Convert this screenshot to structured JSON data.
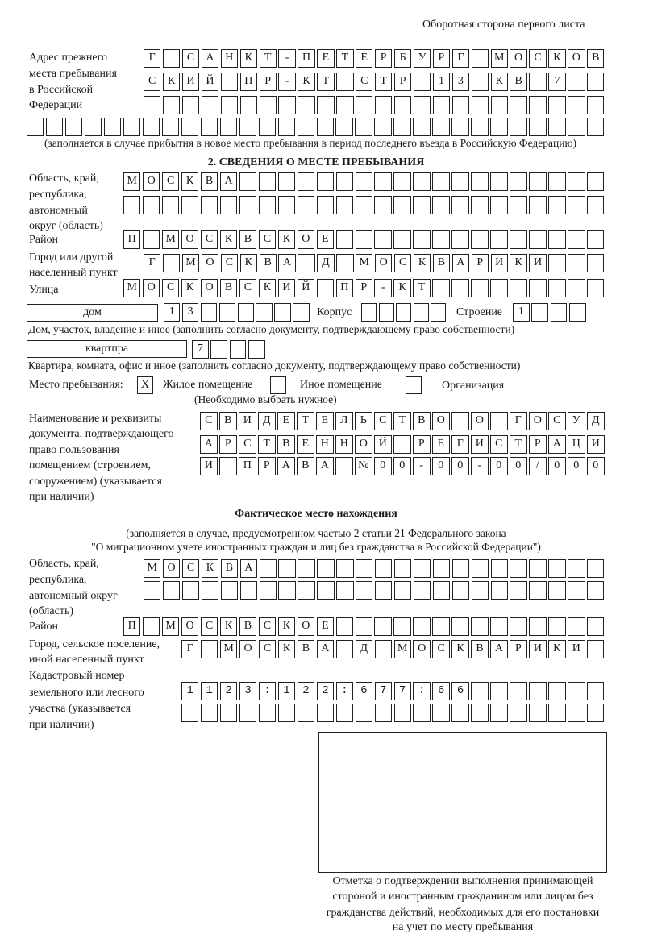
{
  "header": "Оборотная сторона первого листа",
  "prev_address": {
    "label_lines": [
      "Адрес прежнего",
      "места пребывания",
      "в Российской",
      "Федерации"
    ],
    "rows": [
      "Г САНКТ-ПЕТЕРБУРГ МОСКОВ",
      "СКИЙ ПР-КТ СТР 13 КВ 7  ",
      "                        ",
      "                              "
    ],
    "note": "(заполняется в случае прибытия в новое место пребывания в период последнего въезда в Российскую Федерацию)"
  },
  "section2": {
    "title": "2. СВЕДЕНИЯ О МЕСТЕ ПРЕБЫВАНИЯ",
    "region": {
      "label_lines": [
        "Область, край,",
        "республика,",
        "автономный",
        "округ (область)"
      ],
      "rows": [
        "МОСКВА                   ",
        "                         "
      ]
    },
    "district": {
      "label": "Район",
      "rows": [
        "П МОСКВСКОЕ              "
      ]
    },
    "city": {
      "label_lines": [
        "Город или другой",
        "населенный пункт"
      ],
      "rows": [
        "Г МОСКВА Д МОСКВАРИКИ   "
      ]
    },
    "street": {
      "label": "Улица",
      "rows": [
        "МОСКОВСКИЙ ПР-КТ         "
      ]
    },
    "house": {
      "type": "дом",
      "number": "13      ",
      "korpus_label": "Корпус",
      "korpus": "     ",
      "stroenie_label": "Строение",
      "stroenie": "1   ",
      "note": "Дом, участок, владение и иное (заполнить согласно документу, подтверждающему право собственности)"
    },
    "apartment": {
      "type": "квартпра",
      "number": "7   ",
      "note": "Квартира, комната, офис и иное (заполнить согласно документу, подтверждающему право собственности)"
    },
    "stay_place": {
      "label": "Место пребывания:",
      "options": [
        {
          "label": "Жилое помещение",
          "mark": "X",
          "checked": true
        },
        {
          "label": "Иное помещение",
          "mark": "",
          "checked": false
        },
        {
          "label": "Организация",
          "mark": "",
          "checked": false
        }
      ],
      "hint": "(Необходимо выбрать нужное)"
    },
    "document": {
      "label_lines": [
        "Наименование и реквизиты",
        "документа, подтверждающего",
        "право пользования",
        "помещением (строением,",
        "сооружением) (указывается",
        "при наличии)"
      ],
      "rows": [
        "СВИДЕТЕЛЬСТВО О ГОСУД",
        "АРСТВЕННОЙ РЕГИСТРАЦИ",
        "И ПРАВА №00-00-00/000"
      ]
    }
  },
  "actual": {
    "title": "Фактическое место нахождения",
    "note_lines": [
      "(заполняется в случае, предусмотренном частью 2 статьи 21 Федерального закона",
      "\"О миграционном учете иностранных граждан и лиц без гражданства в Российской Федерации\")"
    ],
    "region": {
      "label_lines": [
        "Область, край,",
        "республика,",
        "автономный округ",
        "(область)"
      ],
      "rows": [
        "МОСКВА                  ",
        "                        "
      ]
    },
    "district": {
      "label": "Район",
      "rows": [
        "П МОСКВСКОЕ              "
      ]
    },
    "city": {
      "label_lines": [
        "Город, сельское поселение,",
        "иной населенный пункт"
      ],
      "rows": [
        "Г МОСКВА Д МОСКВАРИКИ "
      ]
    },
    "cadastral": {
      "label_lines": [
        "Кадастровый номер",
        "земельного или лесного",
        "участка (указывается",
        "при наличии)"
      ],
      "rows": [
        "1123:122:677:66       ",
        "                      "
      ]
    },
    "confirmation_caption": [
      "Отметка о подтверждении выполнения принимающей",
      "стороной и иностранным гражданином или лицом без",
      "гражданства действий, необходимых для его постановки",
      "на учет по месту пребывания"
    ]
  }
}
